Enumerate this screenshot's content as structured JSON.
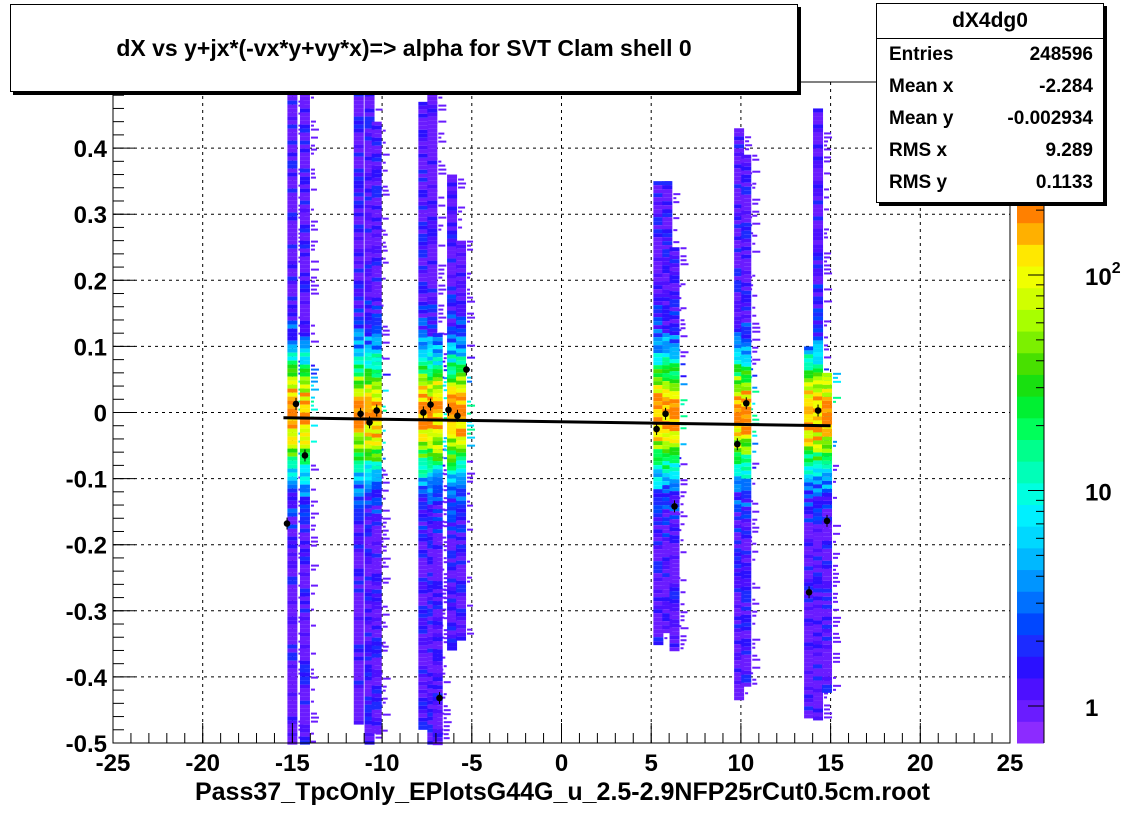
{
  "title": "dX vs  y+jx*(-vx*y+vy*x)=> alpha for SVT Clam shell 0",
  "footer": "Pass37_TpcOnly_EPlotsG44G_u_2.5-2.9NFP25rCut0.5cm.root",
  "stats": {
    "name": "dX4dg0",
    "rows": [
      {
        "label": "Entries",
        "value": "248596"
      },
      {
        "label": "Mean x",
        "value": "-2.284"
      },
      {
        "label": "Mean y",
        "value": "-0.002934"
      },
      {
        "label": "RMS x",
        "value": "9.289"
      },
      {
        "label": "RMS y",
        "value": "0.1133"
      }
    ]
  },
  "chart_data": {
    "type": "heatmap",
    "xlim": [
      -25,
      25
    ],
    "ylim": [
      -0.5,
      0.5
    ],
    "x_ticks": [
      "-25",
      "-20",
      "-15",
      "-10",
      "-5",
      "0",
      "5",
      "10",
      "15",
      "20",
      "25"
    ],
    "y_ticks": [
      "-0.5",
      "-0.4",
      "-0.3",
      "-0.2",
      "-0.1",
      "0",
      "0.1",
      "0.2",
      "0.3",
      "0.4",
      "0.5"
    ],
    "grid": true,
    "colorbar": {
      "scale": "log",
      "labels": [
        {
          "text": "1",
          "value": 1
        },
        {
          "text": "10",
          "value": 10
        },
        {
          "text": "10",
          "sup": "2",
          "value": 100
        }
      ],
      "colors": [
        "#8c2bff",
        "#6a1cff",
        "#4d10ff",
        "#2b10ff",
        "#1c2bff",
        "#0047ff",
        "#0070ff",
        "#0095ff",
        "#00b8ff",
        "#00d8ff",
        "#00f0ff",
        "#00ffe0",
        "#00ffb8",
        "#00ff8c",
        "#00ff5a",
        "#00f032",
        "#18e010",
        "#48e000",
        "#7cf000",
        "#a8ff00",
        "#d0ff00",
        "#f0ff00",
        "#ffe800",
        "#ffb000",
        "#ff8000"
      ]
    },
    "stripes": [
      {
        "x": -15.0,
        "ymin": -0.5,
        "ymax": 0.49
      },
      {
        "x": -14.3,
        "ymin": -0.5,
        "ymax": 0.49
      },
      {
        "x": -11.3,
        "ymin": -0.47,
        "ymax": 0.49
      },
      {
        "x": -10.7,
        "ymin": -0.5,
        "ymax": 0.49
      },
      {
        "x": -10.3,
        "ymin": -0.48,
        "ymax": 0.44
      },
      {
        "x": -7.7,
        "ymin": -0.48,
        "ymax": 0.47
      },
      {
        "x": -7.2,
        "ymin": -0.5,
        "ymax": 0.49
      },
      {
        "x": -6.9,
        "ymin": -0.5,
        "ymax": 0.12
      },
      {
        "x": -6.1,
        "ymin": -0.36,
        "ymax": 0.36
      },
      {
        "x": -5.6,
        "ymin": -0.34,
        "ymax": 0.26
      },
      {
        "x": 5.4,
        "ymin": -0.35,
        "ymax": 0.35
      },
      {
        "x": 5.9,
        "ymin": -0.33,
        "ymax": 0.35
      },
      {
        "x": 6.3,
        "ymin": -0.36,
        "ymax": 0.25
      },
      {
        "x": 9.9,
        "ymin": -0.43,
        "ymax": 0.43
      },
      {
        "x": 10.3,
        "ymin": -0.41,
        "ymax": 0.39
      },
      {
        "x": 13.8,
        "ymin": -0.46,
        "ymax": 0.1
      },
      {
        "x": 14.3,
        "ymin": -0.46,
        "ymax": 0.46
      },
      {
        "x": 14.8,
        "ymin": -0.42,
        "ymax": 0.06
      }
    ],
    "profile_points": [
      {
        "x": -15.3,
        "y": -0.168
      },
      {
        "x": -14.8,
        "y": 0.013
      },
      {
        "x": -14.3,
        "y": -0.065
      },
      {
        "x": -11.2,
        "y": -0.002
      },
      {
        "x": -10.7,
        "y": -0.015
      },
      {
        "x": -10.3,
        "y": 0.003
      },
      {
        "x": -7.7,
        "y": 0.0
      },
      {
        "x": -7.3,
        "y": 0.012
      },
      {
        "x": -6.8,
        "y": -0.432
      },
      {
        "x": -6.3,
        "y": 0.004
      },
      {
        "x": -5.8,
        "y": -0.005
      },
      {
        "x": -5.3,
        "y": 0.065
      },
      {
        "x": 5.3,
        "y": -0.025
      },
      {
        "x": 5.8,
        "y": -0.002
      },
      {
        "x": 6.3,
        "y": -0.142
      },
      {
        "x": 9.8,
        "y": -0.048
      },
      {
        "x": 10.3,
        "y": 0.014
      },
      {
        "x": 13.8,
        "y": -0.272
      },
      {
        "x": 14.3,
        "y": 0.003
      },
      {
        "x": 14.8,
        "y": -0.164
      }
    ],
    "fit_line": {
      "x0": -15.5,
      "y0": -0.008,
      "x1": 15.0,
      "y1": -0.02
    }
  }
}
